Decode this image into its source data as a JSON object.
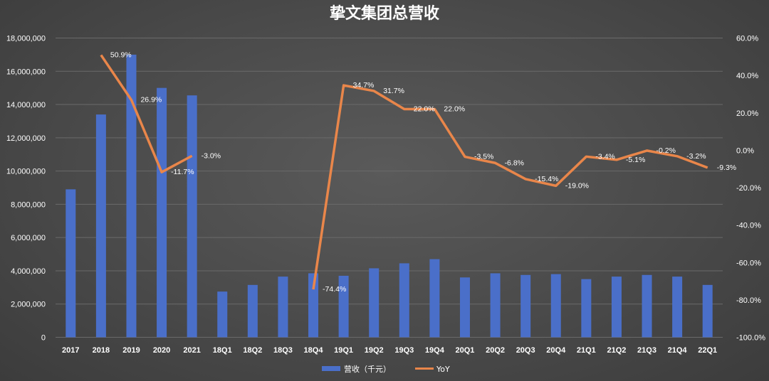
{
  "chart_data": {
    "type": "bar",
    "title": "挚文集团总营收",
    "categories": [
      "2017",
      "2018",
      "2019",
      "2020",
      "2021",
      "18Q1",
      "18Q2",
      "18Q3",
      "18Q4",
      "19Q1",
      "19Q2",
      "19Q3",
      "19Q4",
      "20Q1",
      "20Q2",
      "20Q3",
      "20Q4",
      "21Q1",
      "21Q2",
      "21Q3",
      "21Q4",
      "22Q1"
    ],
    "series": [
      {
        "name": "营收（千元）",
        "type": "bar",
        "axis": "left",
        "values": [
          8900000,
          13400000,
          17000000,
          15000000,
          14550000,
          2750000,
          3150000,
          3650000,
          3850000,
          3700000,
          4150000,
          4450000,
          4700000,
          3600000,
          3850000,
          3750000,
          3800000,
          3500000,
          3650000,
          3750000,
          3650000,
          3150000
        ]
      },
      {
        "name": "YoY",
        "type": "line",
        "axis": "right",
        "values": [
          null,
          50.9,
          26.9,
          -11.7,
          -3.0,
          null,
          null,
          null,
          -74.4,
          34.7,
          31.7,
          22.0,
          22.0,
          -3.5,
          -6.8,
          -15.4,
          -19.0,
          -3.4,
          -5.1,
          -0.2,
          -3.2,
          -9.3
        ],
        "labels": [
          null,
          "50.9%",
          "26.9%",
          "-11.7%",
          "-3.0%",
          null,
          null,
          null,
          "-74.4%",
          "34.7%",
          "31.7%",
          "22.0%",
          "22.0%",
          "-3.5%",
          "-6.8%",
          "-15.4%",
          "-19.0%",
          "-3.4%",
          "-5.1%",
          "-0.2%",
          "-3.2%",
          "-9.3%"
        ]
      }
    ],
    "left_axis": {
      "min": 0,
      "max": 18000000,
      "step": 2000000,
      "tick_labels": [
        "0",
        "2,000,000",
        "4,000,000",
        "6,000,000",
        "8,000,000",
        "10,000,000",
        "12,000,000",
        "14,000,000",
        "16,000,000",
        "18,000,000"
      ]
    },
    "right_axis": {
      "min": -100,
      "max": 60,
      "step": 20,
      "tick_labels": [
        "-100.0%",
        "-80.0%",
        "-60.0%",
        "-40.0%",
        "-20.0%",
        "0.0%",
        "20.0%",
        "40.0%",
        "60.0%"
      ]
    },
    "legend_position": "bottom",
    "grid": true,
    "colors": {
      "bar": "#4a6fc9",
      "line": "#e9864a",
      "grid": "#6a6a6a",
      "text": "#ffffff"
    }
  }
}
